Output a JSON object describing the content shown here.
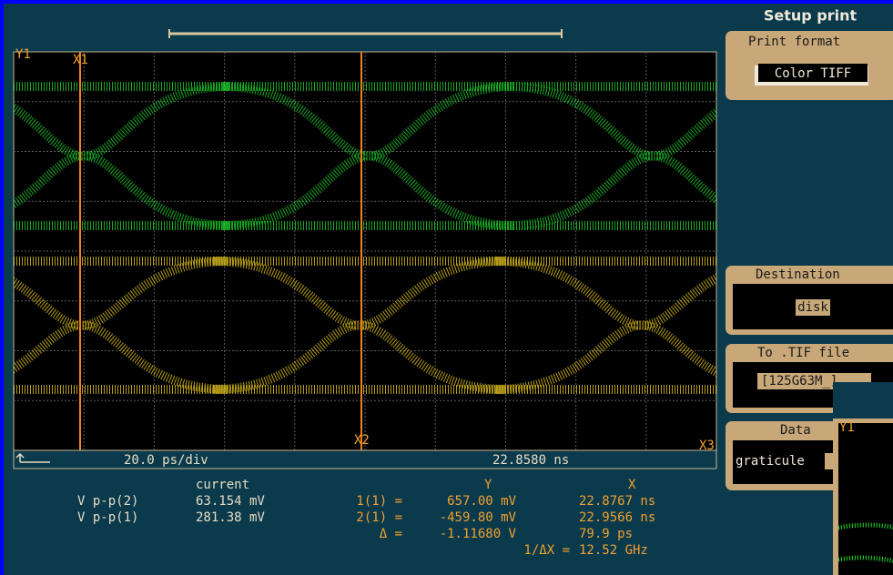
{
  "header": {
    "title": "Setup print"
  },
  "panels": {
    "print_format": {
      "label": "Print format",
      "button": "Color TIFF"
    },
    "destination": {
      "label": "Destination",
      "button": "disk"
    },
    "tif_file": {
      "label": "To .TIF file",
      "field": "[125G63M_]"
    },
    "data": {
      "label": "Data",
      "option": "graticule"
    }
  },
  "scope": {
    "y_marker": "Y1",
    "x1_marker": "X1",
    "x2_marker": "X2",
    "x3_marker": "X3",
    "timebase": "20.0 ps/div",
    "position": "22.8580 ns"
  },
  "measurements": {
    "current_header": "current",
    "rows": [
      {
        "label": "V p-p(2)",
        "value": "63.154 mV"
      },
      {
        "label": "V p-p(1)",
        "value": "281.38 mV"
      }
    ]
  },
  "cursors": {
    "y_header": "Y",
    "x_header": "X",
    "rows": [
      {
        "label": "1(1) =",
        "y": "657.00 mV",
        "x": "22.8767 ns"
      },
      {
        "label": "2(1) =",
        "y": "-459.80 mV",
        "x": "22.9566 ns"
      },
      {
        "label": "Δ =",
        "y": "-1.11680 V",
        "x": "79.9 ps"
      },
      {
        "label": "1/ΔX =",
        "x": "12.52 GHz"
      }
    ]
  },
  "overlay": {
    "marker": "Y1"
  }
}
